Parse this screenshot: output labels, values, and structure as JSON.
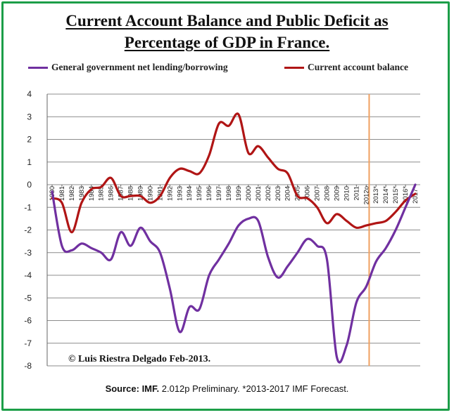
{
  "title_line1": "Current Account Balance and Public Deficit as",
  "title_line2": "Percentage of GDP in France.",
  "copyright": "© Luis Riestra Delgado Feb-2013.",
  "source": {
    "label": "Source: IMF.",
    "text": " 2.012p  Preliminary. *2013-2017  IMF Forecast."
  },
  "chart_data": {
    "type": "line",
    "title": "Current Account Balance and Public Deficit as Percentage of GDP in France.",
    "ylim": [
      -8,
      4
    ],
    "yticks": [
      4,
      3,
      2,
      1,
      0,
      -1,
      -2,
      -3,
      -4,
      -5,
      -6,
      -7,
      -8
    ],
    "legend_position": "top",
    "grid": true,
    "forecast_marker_x": 2012.3,
    "forecast_marker_color": "#f0a060",
    "x_tick_labels": [
      {
        "x": 1980,
        "label": "1980"
      },
      {
        "x": 1981,
        "label": "1981"
      },
      {
        "x": 1982,
        "label": "1982"
      },
      {
        "x": 1983,
        "label": "1983"
      },
      {
        "x": 1984,
        "label": "1984"
      },
      {
        "x": 1985,
        "label": "1985"
      },
      {
        "x": 1986,
        "label": "1986"
      },
      {
        "x": 1987,
        "label": "1987"
      },
      {
        "x": 1988,
        "label": "1988"
      },
      {
        "x": 1989,
        "label": "1989"
      },
      {
        "x": 1990,
        "label": "1990"
      },
      {
        "x": 1991,
        "label": "1991"
      },
      {
        "x": 1992,
        "label": "1992"
      },
      {
        "x": 1993,
        "label": "1993"
      },
      {
        "x": 1994,
        "label": "1994"
      },
      {
        "x": 1995,
        "label": "1995"
      },
      {
        "x": 1996,
        "label": "1996"
      },
      {
        "x": 1997,
        "label": "1997"
      },
      {
        "x": 1998,
        "label": "1998"
      },
      {
        "x": 1999,
        "label": "1999"
      },
      {
        "x": 2000,
        "label": "2000"
      },
      {
        "x": 2001,
        "label": "2001"
      },
      {
        "x": 2002,
        "label": "2002"
      },
      {
        "x": 2003,
        "label": "2003"
      },
      {
        "x": 2004,
        "label": "2004"
      },
      {
        "x": 2005,
        "label": "2005"
      },
      {
        "x": 2006,
        "label": "2006"
      },
      {
        "x": 2007,
        "label": "2007"
      },
      {
        "x": 2008,
        "label": "2008"
      },
      {
        "x": 2009,
        "label": "2009"
      },
      {
        "x": 2010,
        "label": "2010"
      },
      {
        "x": 2011,
        "label": "2011"
      },
      {
        "x": 2012,
        "label": "2012p"
      },
      {
        "x": 2013,
        "label": "2013*"
      },
      {
        "x": 2014,
        "label": "2014*"
      },
      {
        "x": 2015,
        "label": "2015*"
      },
      {
        "x": 2016,
        "label": "2016*"
      },
      {
        "x": 2017,
        "label": "2017*"
      }
    ],
    "series": [
      {
        "name": "General government net lending/borrowing",
        "color": "#7030a0",
        "x": [
          1980,
          1981,
          1982,
          1983,
          1984,
          1985,
          1986,
          1987,
          1988,
          1989,
          1990,
          1991,
          1992,
          1993,
          1994,
          1995,
          1996,
          1997,
          1998,
          1999,
          2000,
          2001,
          2002,
          2003,
          2004,
          2005,
          2006,
          2007,
          2008,
          2009,
          2010,
          2011,
          2012,
          2013,
          2014,
          2015,
          2016,
          2017
        ],
        "y": [
          -0.3,
          -2.7,
          -2.9,
          -2.6,
          -2.8,
          -3.0,
          -3.3,
          -2.1,
          -2.7,
          -1.9,
          -2.5,
          -3.0,
          -4.6,
          -6.5,
          -5.4,
          -5.5,
          -4.0,
          -3.3,
          -2.6,
          -1.8,
          -1.5,
          -1.6,
          -3.2,
          -4.1,
          -3.6,
          -3.0,
          -2.4,
          -2.7,
          -3.3,
          -7.6,
          -7.1,
          -5.2,
          -4.5,
          -3.4,
          -2.8,
          -2.0,
          -1.0,
          0.0
        ]
      },
      {
        "name": "Current account balance",
        "color": "#b01515",
        "x": [
          1980,
          1981,
          1982,
          1983,
          1984,
          1985,
          1986,
          1987,
          1988,
          1989,
          1990,
          1991,
          1992,
          1993,
          1994,
          1995,
          1996,
          1997,
          1998,
          1999,
          2000,
          2001,
          2002,
          2003,
          2004,
          2005,
          2006,
          2007,
          2008,
          2009,
          2010,
          2011,
          2012,
          2013,
          2014,
          2015,
          2016,
          2017
        ],
        "y": [
          -0.6,
          -0.8,
          -2.1,
          -0.8,
          -0.2,
          -0.1,
          0.3,
          -0.5,
          -0.5,
          -0.5,
          -0.8,
          -0.5,
          0.3,
          0.7,
          0.6,
          0.5,
          1.3,
          2.7,
          2.6,
          3.1,
          1.4,
          1.7,
          1.2,
          0.7,
          0.5,
          -0.5,
          -0.6,
          -1.0,
          -1.7,
          -1.3,
          -1.6,
          -1.9,
          -1.8,
          -1.7,
          -1.6,
          -1.2,
          -0.7,
          -0.4
        ]
      }
    ]
  }
}
